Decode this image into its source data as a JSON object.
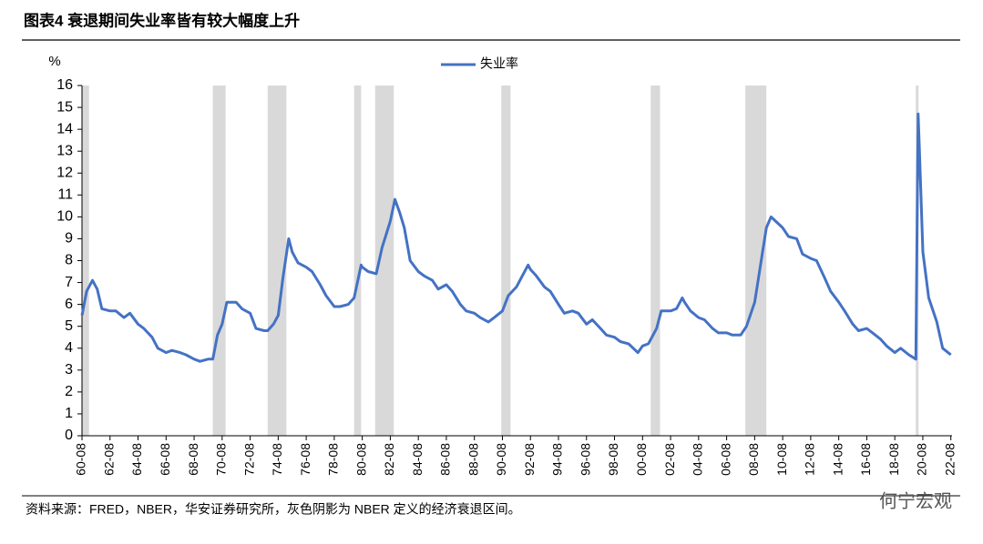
{
  "chart_data": {
    "type": "line",
    "title": "图表4 衰退期间失业率皆有较大幅度上升",
    "y_label": "%",
    "source": "资料来源：FRED，NBER，华安证券研究所，灰色阴影为 NBER 定义的经济衰退区间。",
    "watermark": "何宁宏观",
    "x": [
      "60-08",
      "60-12",
      "61-05",
      "61-09",
      "62-01",
      "62-08",
      "63-01",
      "63-08",
      "64-01",
      "64-08",
      "65-01",
      "65-08",
      "66-01",
      "66-08",
      "67-01",
      "67-08",
      "68-01",
      "68-08",
      "69-01",
      "69-08",
      "69-12",
      "70-04",
      "70-08",
      "70-12",
      "71-08",
      "72-01",
      "72-08",
      "73-01",
      "73-08",
      "73-11",
      "74-04",
      "74-08",
      "74-12",
      "75-05",
      "75-08",
      "76-01",
      "76-08",
      "77-01",
      "77-08",
      "78-01",
      "78-08",
      "79-01",
      "79-08",
      "80-01",
      "80-07",
      "80-08",
      "81-01",
      "81-08",
      "82-01",
      "82-08",
      "82-12",
      "83-04",
      "83-08",
      "84-01",
      "84-08",
      "85-01",
      "85-08",
      "86-01",
      "86-08",
      "87-01",
      "87-08",
      "88-01",
      "88-08",
      "89-01",
      "89-08",
      "90-01",
      "90-08",
      "91-01",
      "91-08",
      "92-01",
      "92-06",
      "92-08",
      "93-01",
      "93-08",
      "94-01",
      "94-08",
      "95-01",
      "95-08",
      "96-01",
      "96-08",
      "97-01",
      "97-08",
      "98-01",
      "98-08",
      "99-01",
      "99-08",
      "00-04",
      "00-08",
      "01-01",
      "01-08",
      "01-12",
      "02-08",
      "03-01",
      "03-06",
      "03-08",
      "04-01",
      "04-08",
      "05-01",
      "05-08",
      "06-01",
      "06-08",
      "07-01",
      "07-08",
      "08-01",
      "08-08",
      "09-01",
      "09-06",
      "09-10",
      "10-08",
      "11-01",
      "11-08",
      "12-01",
      "12-08",
      "13-01",
      "13-08",
      "14-01",
      "14-08",
      "15-01",
      "15-08",
      "16-01",
      "16-08",
      "17-01",
      "17-08",
      "18-01",
      "18-08",
      "19-01",
      "19-08",
      "20-02",
      "20-04",
      "20-05",
      "20-08",
      "21-01",
      "21-08",
      "22-01",
      "22-08"
    ],
    "series": [
      {
        "name": "失业率",
        "color": "#4472c4",
        "values": [
          5.5,
          6.6,
          7.1,
          6.7,
          5.8,
          5.7,
          5.7,
          5.4,
          5.6,
          5.1,
          4.9,
          4.5,
          4.0,
          3.8,
          3.9,
          3.8,
          3.7,
          3.5,
          3.4,
          3.5,
          3.5,
          4.6,
          5.1,
          6.1,
          6.1,
          5.8,
          5.6,
          4.9,
          4.8,
          4.8,
          5.1,
          5.5,
          7.2,
          9.0,
          8.4,
          7.9,
          7.7,
          7.5,
          6.9,
          6.4,
          5.9,
          5.9,
          6.0,
          6.3,
          7.8,
          7.7,
          7.5,
          7.4,
          8.6,
          9.8,
          10.8,
          10.2,
          9.5,
          8.0,
          7.5,
          7.3,
          7.1,
          6.7,
          6.9,
          6.6,
          6.0,
          5.7,
          5.6,
          5.4,
          5.2,
          5.4,
          5.7,
          6.4,
          6.8,
          7.3,
          7.8,
          7.6,
          7.3,
          6.8,
          6.6,
          6.0,
          5.6,
          5.7,
          5.6,
          5.1,
          5.3,
          4.9,
          4.6,
          4.5,
          4.3,
          4.2,
          3.8,
          4.1,
          4.2,
          4.9,
          5.7,
          5.7,
          5.8,
          6.3,
          6.1,
          5.7,
          5.4,
          5.3,
          4.9,
          4.7,
          4.7,
          4.6,
          4.6,
          5.0,
          6.1,
          7.8,
          9.5,
          10.0,
          9.5,
          9.1,
          9.0,
          8.3,
          8.1,
          8.0,
          7.2,
          6.6,
          6.1,
          5.7,
          5.1,
          4.8,
          4.9,
          4.7,
          4.4,
          4.1,
          3.8,
          4.0,
          3.7,
          3.5,
          14.7,
          13.2,
          8.4,
          6.3,
          5.2,
          4.0,
          3.7
        ]
      }
    ],
    "recessions": [
      {
        "start": "60-08",
        "end": "61-02"
      },
      {
        "start": "69-12",
        "end": "70-11"
      },
      {
        "start": "73-11",
        "end": "75-03"
      },
      {
        "start": "80-01",
        "end": "80-07"
      },
      {
        "start": "81-07",
        "end": "82-11"
      },
      {
        "start": "90-07",
        "end": "91-03"
      },
      {
        "start": "01-03",
        "end": "01-11"
      },
      {
        "start": "07-12",
        "end": "09-06"
      },
      {
        "start": "20-02",
        "end": "20-04"
      }
    ],
    "recession_color": "#d9d9d9",
    "xlim": [
      "60-08",
      "22-09"
    ],
    "xticks": [
      "60-08",
      "62-08",
      "64-08",
      "66-08",
      "68-08",
      "70-08",
      "72-08",
      "74-08",
      "76-08",
      "78-08",
      "80-08",
      "82-08",
      "84-08",
      "86-08",
      "88-08",
      "90-08",
      "92-08",
      "94-08",
      "96-08",
      "98-08",
      "00-08",
      "02-08",
      "04-08",
      "06-08",
      "08-08",
      "10-08",
      "12-08",
      "14-08",
      "16-08",
      "18-08",
      "20-08",
      "22-08"
    ],
    "ylim": [
      0,
      16
    ],
    "yticks": [
      0,
      1,
      2,
      3,
      4,
      5,
      6,
      7,
      8,
      9,
      10,
      11,
      12,
      13,
      14,
      15,
      16
    ]
  }
}
